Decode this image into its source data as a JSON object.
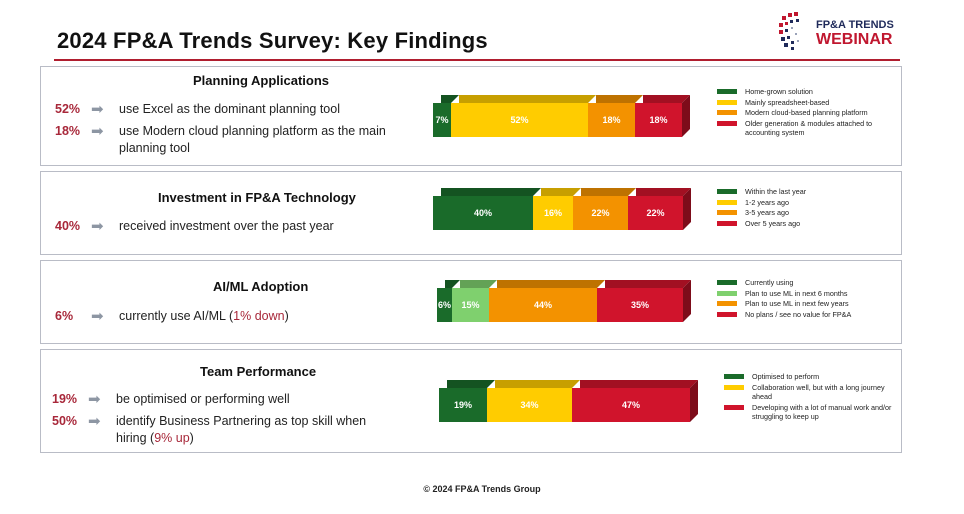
{
  "header": {
    "title": "2024 FP&A Trends Survey: Key Findings",
    "logo_line1": "FP&A TRENDS",
    "logo_line2": "WEBINAR"
  },
  "colors": {
    "dark_green": "#1a6b2a",
    "light_green": "#7fd06e",
    "yellow": "#ffcc00",
    "orange": "#f39200",
    "red": "#d0142c",
    "accent_red": "#a8283a"
  },
  "sections": [
    {
      "title": "Planning Applications",
      "stats": [
        {
          "pct": "52%",
          "text": "use Excel as the dominant planning tool"
        },
        {
          "pct": "18%",
          "text": "use Modern cloud planning platform as the main planning tool"
        }
      ],
      "bar": [
        {
          "label": "7%",
          "value": 7,
          "color": "#1a6b2a"
        },
        {
          "label": "52%",
          "value": 52,
          "color": "#ffcc00"
        },
        {
          "label": "18%",
          "value": 18,
          "color": "#f39200"
        },
        {
          "label": "18%",
          "value": 18,
          "color": "#d0142c"
        }
      ],
      "legend": [
        {
          "text": "Home-grown solution",
          "color": "#1a6b2a"
        },
        {
          "text": "Mainly spreadsheet-based",
          "color": "#ffcc00"
        },
        {
          "text": "Modern cloud-based planning platform",
          "color": "#f39200"
        },
        {
          "text": "Older generation & modules attached to accounting system",
          "color": "#d0142c"
        }
      ]
    },
    {
      "title": "Investment in FP&A Technology",
      "stats": [
        {
          "pct": "40%",
          "text": "received investment over the past year"
        }
      ],
      "bar": [
        {
          "label": "40%",
          "value": 40,
          "color": "#1a6b2a"
        },
        {
          "label": "16%",
          "value": 16,
          "color": "#ffcc00"
        },
        {
          "label": "22%",
          "value": 22,
          "color": "#f39200"
        },
        {
          "label": "22%",
          "value": 22,
          "color": "#d0142c"
        }
      ],
      "legend": [
        {
          "text": "Within the last year",
          "color": "#1a6b2a"
        },
        {
          "text": "1-2 years ago",
          "color": "#ffcc00"
        },
        {
          "text": "3-5 years ago",
          "color": "#f39200"
        },
        {
          "text": "Over 5 years ago",
          "color": "#d0142c"
        }
      ]
    },
    {
      "title": "AI/ML Adoption",
      "stats": [
        {
          "pct": "6%",
          "text": "currently use AI/ML",
          "suffix_open": " (",
          "accent": "1% down",
          "suffix_close": ")"
        }
      ],
      "bar": [
        {
          "label": "6%",
          "value": 6,
          "color": "#1a6b2a"
        },
        {
          "label": "15%",
          "value": 15,
          "color": "#7fd06e"
        },
        {
          "label": "44%",
          "value": 44,
          "color": "#f39200"
        },
        {
          "label": "35%",
          "value": 35,
          "color": "#d0142c"
        }
      ],
      "legend": [
        {
          "text": "Currently using",
          "color": "#1a6b2a"
        },
        {
          "text": "Plan to use ML in next 6 months",
          "color": "#7fd06e"
        },
        {
          "text": "Plan to use ML in next few years",
          "color": "#f39200"
        },
        {
          "text": "No plans / see no value for FP&A",
          "color": "#d0142c"
        }
      ]
    },
    {
      "title": "Team Performance",
      "stats": [
        {
          "pct": "19%",
          "text": "be optimised or performing well"
        },
        {
          "pct": "50%",
          "text": "identify Business Partnering as top skill when hiring",
          "suffix_open": " (",
          "accent": "9% up",
          "suffix_close": ")"
        }
      ],
      "bar": [
        {
          "label": "19%",
          "value": 19,
          "color": "#1a6b2a"
        },
        {
          "label": "34%",
          "value": 34,
          "color": "#ffcc00"
        },
        {
          "label": "47%",
          "value": 47,
          "color": "#d0142c"
        }
      ],
      "legend": [
        {
          "text": "Optimised to perform",
          "color": "#1a6b2a"
        },
        {
          "text": "Collaboration well, but with a long journey ahead",
          "color": "#ffcc00"
        },
        {
          "text": "Developing with a lot of manual work and/or struggling to keep up",
          "color": "#d0142c"
        }
      ]
    }
  ],
  "footer": "© 2024 FP&A Trends Group"
}
